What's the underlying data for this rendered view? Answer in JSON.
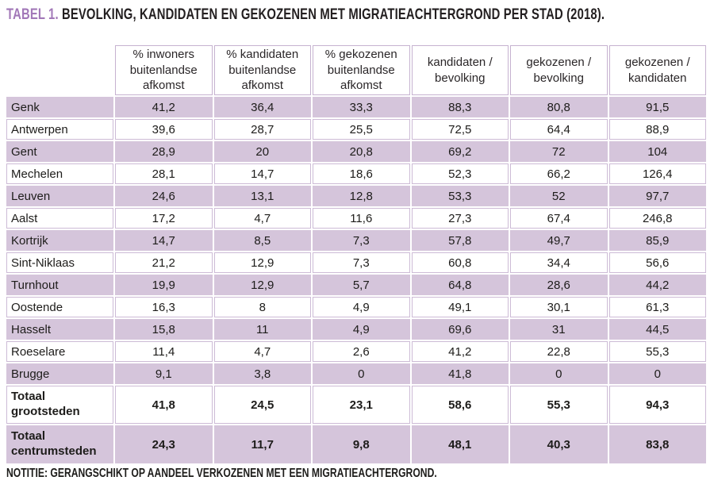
{
  "title": {
    "tag": "TABEL 1.",
    "text": "BEVOLKING, KANDIDATEN EN GEKOZENEN MET MIGRATIEACHTERGROND PER STAD (2018)."
  },
  "note": "NOTITIE: GERANGSCHIKT OP AANDEEL VERKOZENEN MET EEN MIGRATIEACHTERGROND.",
  "colors": {
    "accent_purple": "#a278b8",
    "band_purple": "#d5c5db",
    "grid_purple": "#c6b2d0",
    "text_dark": "#231f20"
  },
  "chart_data": {
    "type": "table",
    "title": "TABEL 1. BEVOLKING, KANDIDATEN EN GEKOZENEN MET MIGRATIEACHTERGROND PER STAD (2018).",
    "columns": [
      "% inwoners buitenlandse afkomst",
      "% kandidaten buitenlandse afkomst",
      "% gekozenen buitenlandse afkomst",
      "kandidaten / bevolking",
      "gekozenen / bevolking",
      "gekozenen / kandidaten"
    ],
    "rows": [
      {
        "label": "Genk",
        "values": [
          "41,2",
          "36,4",
          "33,3",
          "88,3",
          "80,8",
          "91,5"
        ],
        "shaded": true,
        "bold": false
      },
      {
        "label": "Antwerpen",
        "values": [
          "39,6",
          "28,7",
          "25,5",
          "72,5",
          "64,4",
          "88,9"
        ],
        "shaded": false,
        "bold": false
      },
      {
        "label": "Gent",
        "values": [
          "28,9",
          "20",
          "20,8",
          "69,2",
          "72",
          "104"
        ],
        "shaded": true,
        "bold": false
      },
      {
        "label": "Mechelen",
        "values": [
          "28,1",
          "14,7",
          "18,6",
          "52,3",
          "66,2",
          "126,4"
        ],
        "shaded": false,
        "bold": false
      },
      {
        "label": "Leuven",
        "values": [
          "24,6",
          "13,1",
          "12,8",
          "53,3",
          "52",
          "97,7"
        ],
        "shaded": true,
        "bold": false
      },
      {
        "label": "Aalst",
        "values": [
          "17,2",
          "4,7",
          "11,6",
          "27,3",
          "67,4",
          "246,8"
        ],
        "shaded": false,
        "bold": false
      },
      {
        "label": "Kortrijk",
        "values": [
          "14,7",
          "8,5",
          "7,3",
          "57,8",
          "49,7",
          "85,9"
        ],
        "shaded": true,
        "bold": false
      },
      {
        "label": "Sint-Niklaas",
        "values": [
          "21,2",
          "12,9",
          "7,3",
          "60,8",
          "34,4",
          "56,6"
        ],
        "shaded": false,
        "bold": false
      },
      {
        "label": "Turnhout",
        "values": [
          "19,9",
          "12,9",
          "5,7",
          "64,8",
          "28,6",
          "44,2"
        ],
        "shaded": true,
        "bold": false
      },
      {
        "label": "Oostende",
        "values": [
          "16,3",
          "8",
          "4,9",
          "49,1",
          "30,1",
          "61,3"
        ],
        "shaded": false,
        "bold": false
      },
      {
        "label": "Hasselt",
        "values": [
          "15,8",
          "11",
          "4,9",
          "69,6",
          "31",
          "44,5"
        ],
        "shaded": true,
        "bold": false
      },
      {
        "label": "Roeselare",
        "values": [
          "11,4",
          "4,7",
          "2,6",
          "41,2",
          "22,8",
          "55,3"
        ],
        "shaded": false,
        "bold": false
      },
      {
        "label": "Brugge",
        "values": [
          "9,1",
          "3,8",
          "0",
          "41,8",
          "0",
          "0"
        ],
        "shaded": true,
        "bold": false
      },
      {
        "label": "Totaal grootsteden",
        "values": [
          "41,8",
          "24,5",
          "23,1",
          "58,6",
          "55,3",
          "94,3"
        ],
        "shaded": false,
        "bold": true
      },
      {
        "label": "Totaal centrumsteden",
        "values": [
          "24,3",
          "11,7",
          "9,8",
          "48,1",
          "40,3",
          "83,8"
        ],
        "shaded": true,
        "bold": true
      }
    ]
  }
}
